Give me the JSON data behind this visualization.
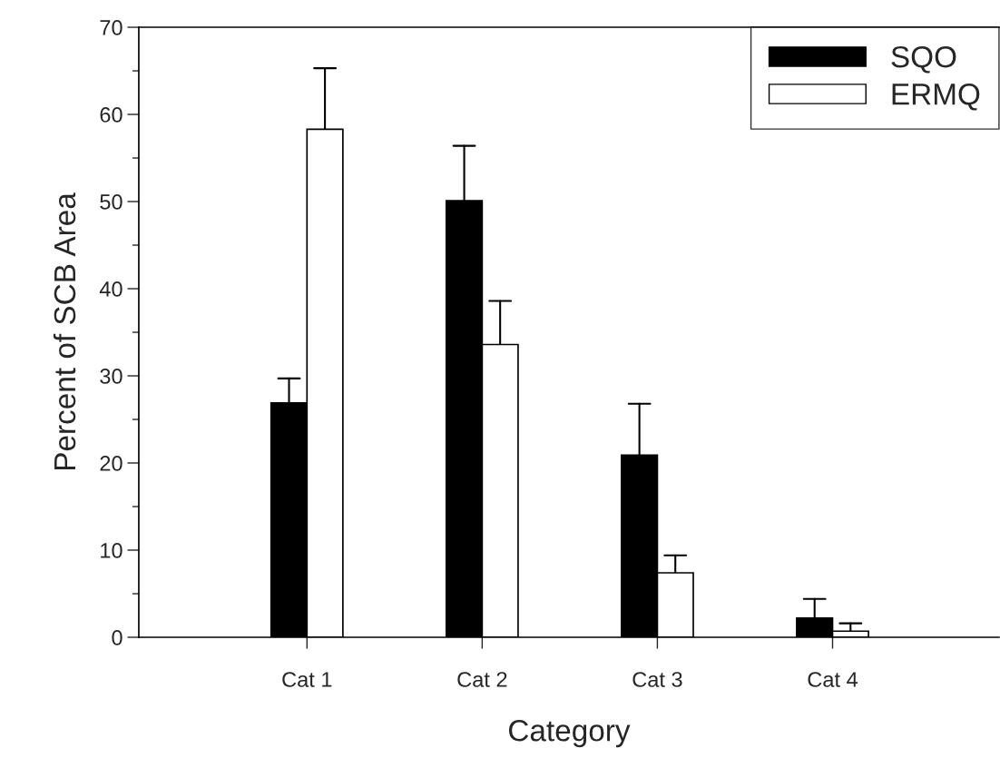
{
  "chart_data": {
    "type": "bar",
    "xlabel": "Category",
    "ylabel": "Percent of SCB Area",
    "categories": [
      "Cat 1",
      "Cat 2",
      "Cat 3",
      "Cat 4"
    ],
    "series": [
      {
        "name": "SQO",
        "color": "#000000",
        "values": [
          26.9,
          50.1,
          20.9,
          2.2
        ],
        "errors": [
          [
            26.9,
            29.7
          ],
          [
            50.1,
            56.4
          ],
          [
            20.9,
            26.8
          ],
          [
            2.2,
            4.4
          ]
        ]
      },
      {
        "name": "ERMQ",
        "color": "#ffffff",
        "values": [
          58.3,
          33.6,
          7.4,
          0.7
        ],
        "errors": [
          [
            58.3,
            65.3
          ],
          [
            33.6,
            38.6
          ],
          [
            7.4,
            9.4
          ],
          [
            0.7,
            1.6
          ]
        ]
      }
    ],
    "ylim": [
      0,
      70
    ],
    "yticks": [
      0,
      10,
      20,
      30,
      40,
      50,
      60,
      70
    ],
    "grid": false,
    "legend": "top right"
  }
}
